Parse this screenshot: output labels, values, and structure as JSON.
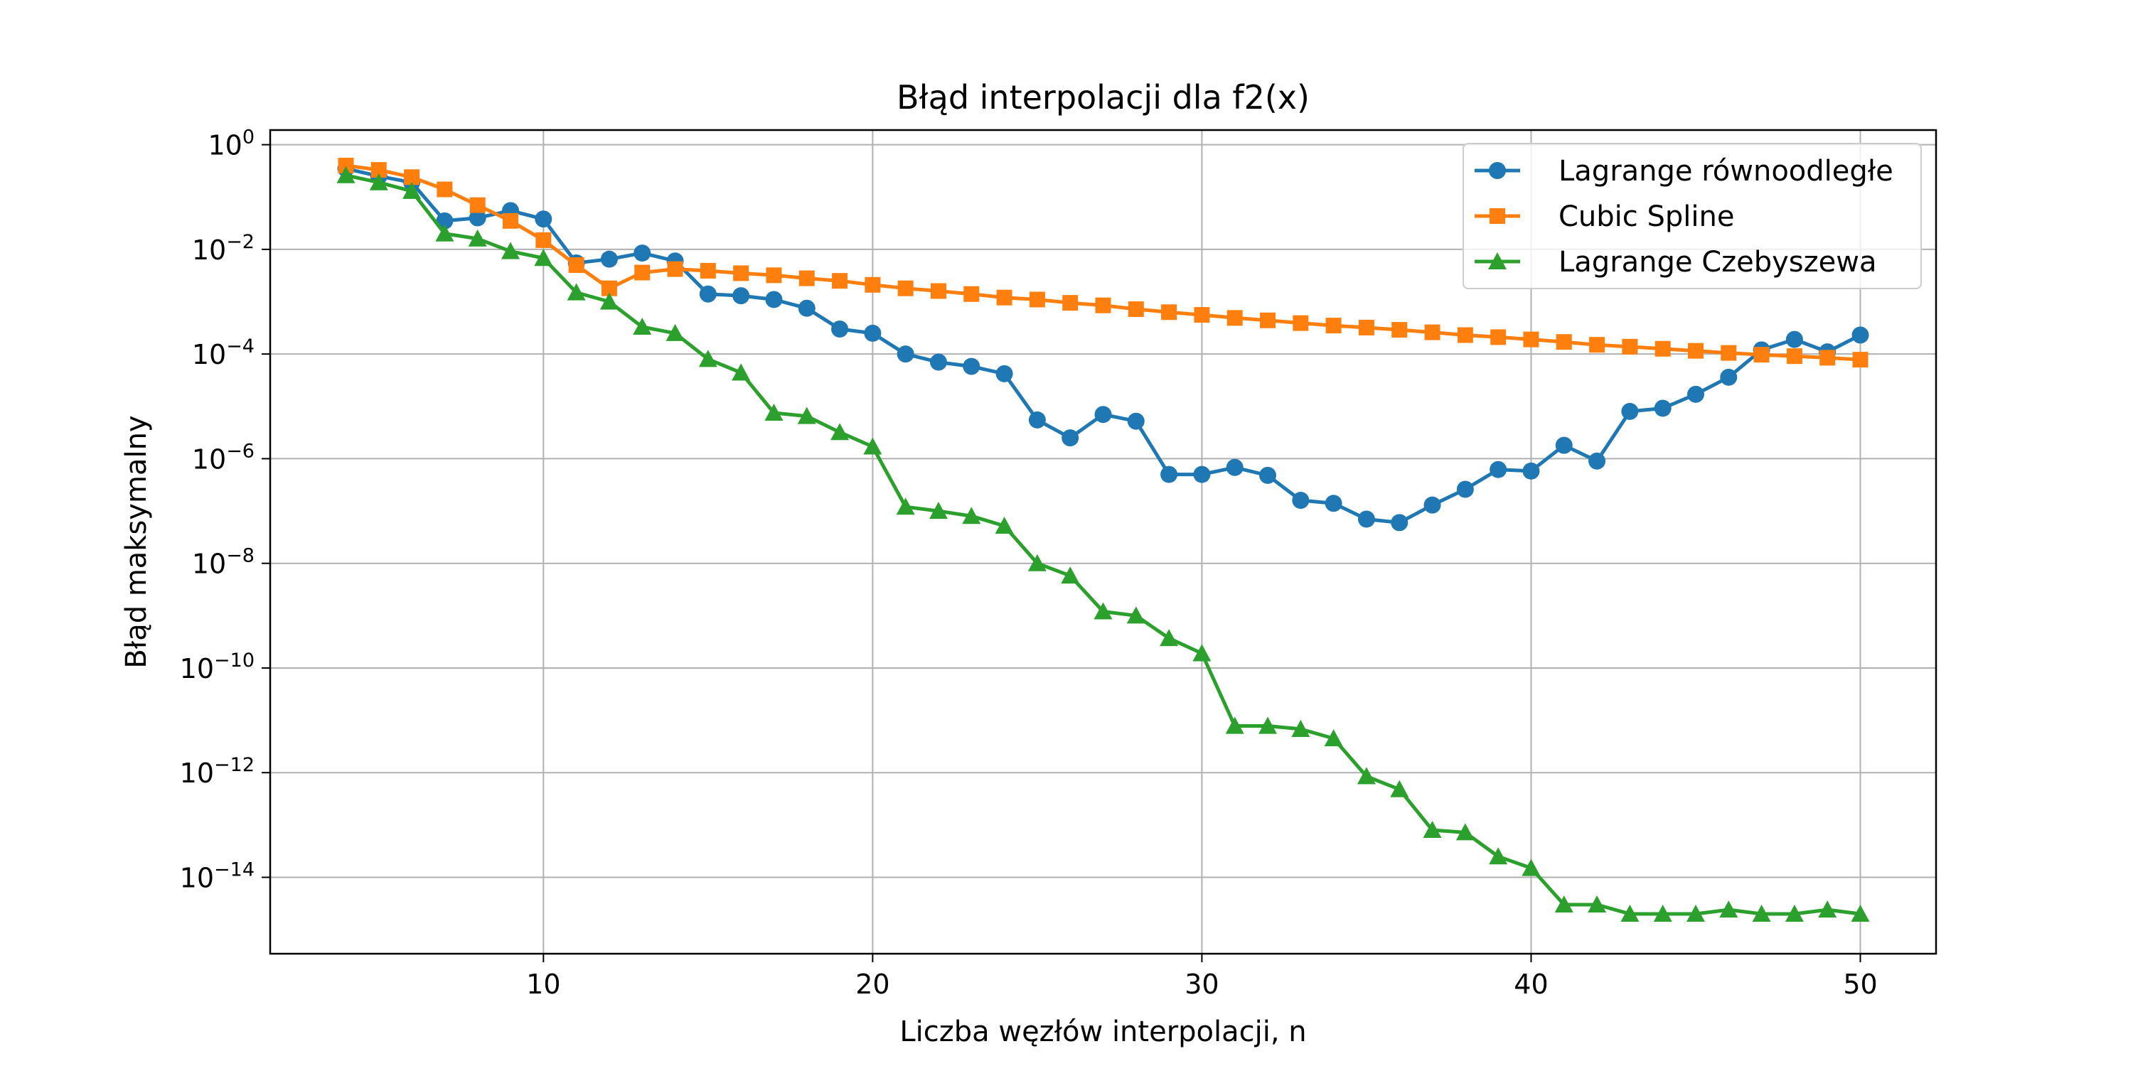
{
  "chart_data": {
    "type": "line",
    "title": "Błąd interpolacji dla f2(x)",
    "xlabel": "Liczba węzłów interpolacji, n",
    "ylabel": "Błąd maksymalny",
    "xlim": [
      1.7,
      52.3
    ],
    "ylim_log10": [
      -15.46,
      0.28
    ],
    "yscale": "log",
    "grid": true,
    "legend_position": "top-right",
    "x_ticks": [
      10,
      20,
      30,
      40,
      50
    ],
    "y_ticks_exponents": [
      0,
      -2,
      -4,
      -6,
      -8,
      -10,
      -12,
      -14
    ],
    "x": [
      4,
      5,
      6,
      7,
      8,
      9,
      10,
      11,
      12,
      13,
      14,
      15,
      16,
      17,
      18,
      19,
      20,
      21,
      22,
      23,
      24,
      25,
      26,
      27,
      28,
      29,
      30,
      31,
      32,
      33,
      34,
      35,
      36,
      37,
      38,
      39,
      40,
      41,
      42,
      43,
      44,
      45,
      46,
      47,
      48,
      49,
      50
    ],
    "series": [
      {
        "name": "Lagrange równoodległe",
        "color": "#1f77b4",
        "marker": "circle",
        "values": [
          0.35,
          0.25,
          0.19,
          0.035,
          0.04,
          0.055,
          0.038,
          0.0055,
          0.0065,
          0.0085,
          0.006,
          0.0014,
          0.0013,
          0.0011,
          0.00075,
          0.0003,
          0.00025,
          0.0001,
          7e-05,
          5.8e-05,
          4.2e-05,
          5.5e-06,
          2.5e-06,
          7e-06,
          5.2e-06,
          5e-07,
          5e-07,
          6.8e-07,
          4.8e-07,
          1.6e-07,
          1.4e-07,
          7e-08,
          6e-08,
          1.3e-07,
          2.6e-07,
          6.2e-07,
          5.8e-07,
          1.8e-06,
          9e-07,
          8e-06,
          9.2e-06,
          1.7e-05,
          3.6e-05,
          0.00012,
          0.00019,
          0.00011,
          0.00023
        ]
      },
      {
        "name": "Cubic Spline",
        "color": "#ff7f0e",
        "marker": "square",
        "values": [
          0.4,
          0.33,
          0.24,
          0.14,
          0.07,
          0.035,
          0.015,
          0.005,
          0.0018,
          0.0036,
          0.0042,
          0.0039,
          0.0035,
          0.0032,
          0.0028,
          0.0025,
          0.0021,
          0.0018,
          0.0016,
          0.0014,
          0.0012,
          0.0011,
          0.00095,
          0.00085,
          0.00072,
          0.00063,
          0.00056,
          0.00049,
          0.00044,
          0.00039,
          0.00035,
          0.00032,
          0.00029,
          0.00026,
          0.00023,
          0.00021,
          0.00019,
          0.00017,
          0.00015,
          0.000138,
          0.000126,
          0.000115,
          0.000105,
          9.7e-05,
          9.1e-05,
          8.5e-05,
          7.8e-05
        ]
      },
      {
        "name": "Lagrange Czebyszewa",
        "color": "#2ca02c",
        "marker": "triangle",
        "values": [
          0.26,
          0.19,
          0.13,
          0.02,
          0.016,
          0.0092,
          0.0068,
          0.0015,
          0.001,
          0.00033,
          0.00025,
          8e-05,
          4.4e-05,
          7.5e-06,
          6.5e-06,
          3.2e-06,
          1.7e-06,
          1.2e-07,
          1e-07,
          8e-08,
          5.2e-08,
          1e-08,
          5.8e-09,
          1.2e-09,
          1e-09,
          3.7e-10,
          1.9e-10,
          7.8e-12,
          7.8e-12,
          6.8e-12,
          4.5e-12,
          8.5e-13,
          4.8e-13,
          8e-14,
          7.2e-14,
          2.5e-14,
          1.5e-14,
          3e-15,
          3e-15,
          2e-15,
          2e-15,
          2e-15,
          2.4e-15,
          2e-15,
          2e-15,
          2.4e-15,
          2e-15
        ]
      }
    ]
  }
}
